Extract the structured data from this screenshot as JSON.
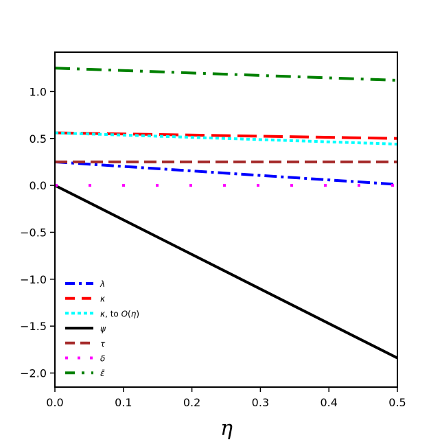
{
  "chart_data": {
    "type": "line",
    "title": "",
    "xlabel": "η",
    "ylabel": "",
    "xlim": [
      0,
      0.5
    ],
    "ylim": [
      -2.15,
      1.42
    ],
    "xticks": [
      0.0,
      0.1,
      0.2,
      0.3,
      0.4,
      0.5
    ],
    "xtick_labels": [
      "0.0",
      "0.1",
      "0.2",
      "0.3",
      "0.4",
      "0.5"
    ],
    "yticks": [
      -2.0,
      -1.5,
      -1.0,
      -0.5,
      0.0,
      0.5,
      1.0
    ],
    "ytick_labels": [
      "−2.0",
      "−1.5",
      "−1.0",
      "−0.5",
      "0.0",
      "0.5",
      "1.0"
    ],
    "grid": false,
    "legend_position": "lower-left",
    "series": [
      {
        "name": "λ",
        "label_parts": [
          [
            "λ",
            true
          ]
        ],
        "color": "#0000ff",
        "dash": "18,6,4,6",
        "width": 4,
        "x": [
          0,
          0.5
        ],
        "y": [
          0.25,
          0.01
        ]
      },
      {
        "name": "κ",
        "label_parts": [
          [
            "κ",
            true
          ]
        ],
        "color": "#ff0000",
        "dash": "28,10",
        "width": 4,
        "x": [
          0,
          0.5
        ],
        "y": [
          0.56,
          0.5
        ]
      },
      {
        "name": "κ, to O(η)",
        "label_parts": [
          [
            "κ",
            true
          ],
          [
            ", to ",
            false
          ],
          [
            "O",
            true
          ],
          [
            "(",
            false
          ],
          [
            "η",
            true
          ],
          [
            ")",
            false
          ]
        ],
        "color": "#00ffff",
        "dash": "5,4",
        "width": 4,
        "x": [
          0,
          0.5
        ],
        "y": [
          0.56,
          0.44
        ]
      },
      {
        "name": "ψ",
        "label_parts": [
          [
            "ψ",
            true
          ]
        ],
        "color": "#000000",
        "dash": "",
        "width": 4,
        "x": [
          0,
          0.5
        ],
        "y": [
          0.0,
          -1.84
        ]
      },
      {
        "name": "τ",
        "label_parts": [
          [
            "τ",
            true
          ]
        ],
        "color": "#a52a2a",
        "dash": "18,8",
        "width": 4,
        "x": [
          0,
          0.5
        ],
        "y": [
          0.25,
          0.25
        ]
      },
      {
        "name": "δ",
        "label_parts": [
          [
            "δ",
            true
          ]
        ],
        "color": "#ff00ff",
        "dash": "4,45",
        "width": 4,
        "x": [
          0,
          0.5
        ],
        "y": [
          0.0,
          0.0
        ]
      },
      {
        "name": "ε̄",
        "label_parts": [
          [
            "ε̄",
            true
          ]
        ],
        "color": "#008000",
        "dash": "22,10,4,10",
        "width": 4,
        "x": [
          0,
          0.5
        ],
        "y": [
          1.25,
          1.12
        ]
      }
    ]
  }
}
